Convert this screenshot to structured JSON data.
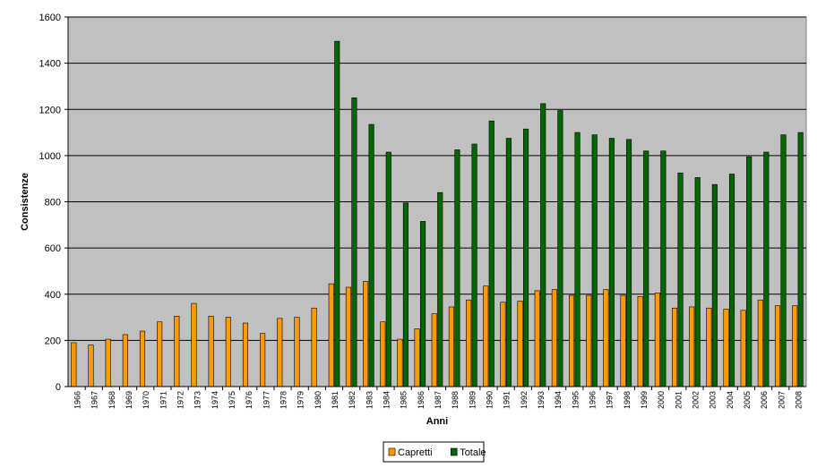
{
  "chart_data": {
    "type": "bar",
    "xlabel": "Anni",
    "ylabel": "Consistenze",
    "ylim": [
      0,
      1600
    ],
    "yticks": [
      0,
      200,
      400,
      600,
      800,
      1000,
      1200,
      1400,
      1600
    ],
    "grid": true,
    "legend_position": "bottom",
    "plot_background": "#C0C0C0",
    "categories": [
      "1966",
      "1967",
      "1968",
      "1969",
      "1970",
      "1971",
      "1972",
      "1973",
      "1974",
      "1975",
      "1976",
      "1977",
      "1978",
      "1979",
      "1980",
      "1981",
      "1982",
      "1983",
      "1984",
      "1985",
      "1986",
      "1987",
      "1988",
      "1989",
      "1990",
      "1991",
      "1992",
      "1993",
      "1994",
      "1995",
      "1996",
      "1997",
      "1998",
      "1999",
      "2000",
      "2001",
      "2002",
      "2003",
      "2004",
      "2005",
      "2006",
      "2007",
      "2008"
    ],
    "series": [
      {
        "name": "Capretti",
        "color": "#FF9900",
        "values": [
          190,
          180,
          205,
          225,
          240,
          280,
          305,
          360,
          305,
          300,
          275,
          230,
          295,
          300,
          340,
          445,
          430,
          455,
          280,
          205,
          250,
          315,
          345,
          375,
          435,
          365,
          370,
          415,
          420,
          395,
          395,
          420,
          395,
          390,
          405,
          340,
          345,
          340,
          335,
          330,
          375,
          350,
          350
        ]
      },
      {
        "name": "Totale",
        "color": "#006600",
        "values": [
          null,
          null,
          null,
          null,
          null,
          null,
          null,
          null,
          null,
          null,
          null,
          null,
          null,
          null,
          null,
          1495,
          1250,
          1135,
          1015,
          795,
          715,
          840,
          1025,
          1050,
          1150,
          1075,
          1115,
          1225,
          1195,
          1100,
          1090,
          1075,
          1070,
          1020,
          1020,
          925,
          905,
          875,
          920,
          995,
          1015,
          1090,
          1100
        ]
      }
    ]
  }
}
